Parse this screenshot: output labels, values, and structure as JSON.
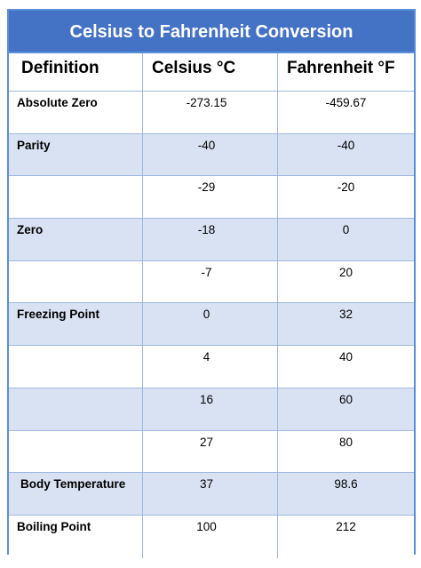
{
  "table": {
    "title": "Celsius to Fahrenheit Conversion",
    "headers": {
      "definition": "Definition",
      "celsius": "Celsius °C",
      "fahrenheit": "Fahrenheit °F"
    },
    "rows": [
      {
        "definition": "Absolute Zero",
        "celsius": "-273.15",
        "fahrenheit": "-459.67"
      },
      {
        "definition": "Parity",
        "celsius": "-40",
        "fahrenheit": "-40"
      },
      {
        "definition": "",
        "celsius": "-29",
        "fahrenheit": "-20"
      },
      {
        "definition": "Zero",
        "celsius": "-18",
        "fahrenheit": "0"
      },
      {
        "definition": "",
        "celsius": "-7",
        "fahrenheit": "20"
      },
      {
        "definition": "Freezing Point",
        "celsius": "0",
        "fahrenheit": "32"
      },
      {
        "definition": "",
        "celsius": "4",
        "fahrenheit": "40"
      },
      {
        "definition": "",
        "celsius": "16",
        "fahrenheit": "60"
      },
      {
        "definition": "",
        "celsius": "27",
        "fahrenheit": "80"
      },
      {
        "definition": "Body Temperature",
        "celsius": "37",
        "fahrenheit": "98.6"
      },
      {
        "definition": "Boiling Point",
        "celsius": "100",
        "fahrenheit": "212"
      }
    ]
  },
  "colors": {
    "title_background": "#4472c4",
    "title_text": "#ffffff",
    "shaded_row": "#d9e2f3",
    "plain_row": "#ffffff",
    "border": "#5b8fd9"
  }
}
